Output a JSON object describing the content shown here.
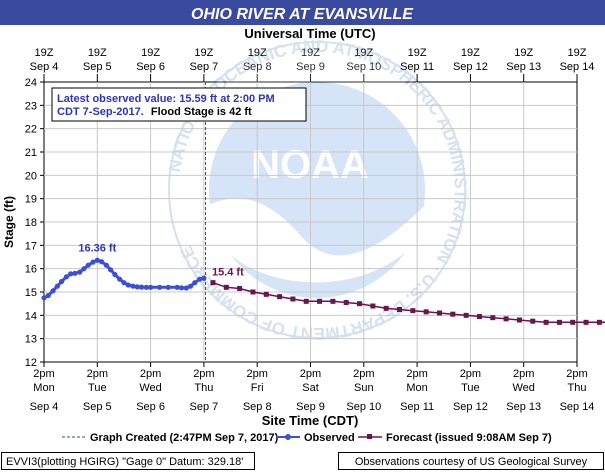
{
  "title": "OHIO RIVER AT EVANSVILLE",
  "top_axis_title": "Universal Time (UTC)",
  "bottom_axis_title": "Site Time (CDT)",
  "y_axis_title": "Stage (ft)",
  "info_box": {
    "line1": "Latest observed value: 15.59 ft at 2:00 PM",
    "line2a": "CDT 7-Sep-2017.",
    "line2b": "Flood Stage is 42 ft"
  },
  "watermark": {
    "logo_text": "NOAA",
    "ring_text": "NATIONAL OCEANIC AND ATMOSPHERIC ADMINISTRATION · U.S. DEPARTMENT OF COMMERCE"
  },
  "legend": {
    "created": "Graph Created (2:47PM Sep 7, 2017)",
    "observed": "Observed",
    "forecast": "Forecast (issued 9:08AM Sep 7)"
  },
  "footer": {
    "left": "EVVI3(plotting HGIRG) \"Gage 0\" Datum: 329.18'",
    "right": "Observations courtesy of US Geological Survey"
  },
  "colors": {
    "title_bg": "#3a4a9e",
    "observed": "#3b4fd8",
    "forecast": "#6b1452",
    "created_line": "#3a4a9e",
    "label_blue": "#2b35c0"
  },
  "chart_data": {
    "type": "line",
    "ylabel": "Stage (ft)",
    "ylim": [
      12,
      24
    ],
    "yticks": [
      12,
      13,
      14,
      15,
      16,
      17,
      18,
      19,
      20,
      21,
      22,
      23,
      24
    ],
    "x_ticks_top": [
      {
        "time": "19Z",
        "date": "Sep 4"
      },
      {
        "time": "19Z",
        "date": "Sep 5"
      },
      {
        "time": "19Z",
        "date": "Sep 6"
      },
      {
        "time": "19Z",
        "date": "Sep 7"
      },
      {
        "time": "19Z",
        "date": "Sep 8"
      },
      {
        "time": "19Z",
        "date": "Sep 9"
      },
      {
        "time": "19Z",
        "date": "Sep 10"
      },
      {
        "time": "19Z",
        "date": "Sep 11"
      },
      {
        "time": "19Z",
        "date": "Sep 12"
      },
      {
        "time": "19Z",
        "date": "Sep 13"
      },
      {
        "time": "19Z",
        "date": "Sep 14"
      }
    ],
    "x_ticks_bottom": [
      {
        "time": "2pm",
        "day": "Mon",
        "date": "Sep 4"
      },
      {
        "time": "2pm",
        "day": "Tue",
        "date": "Sep 5"
      },
      {
        "time": "2pm",
        "day": "Wed",
        "date": "Sep 6"
      },
      {
        "time": "2pm",
        "day": "Thu",
        "date": "Sep 7"
      },
      {
        "time": "2pm",
        "day": "Fri",
        "date": "Sep 8"
      },
      {
        "time": "2pm",
        "day": "Sat",
        "date": "Sep 9"
      },
      {
        "time": "2pm",
        "day": "Sun",
        "date": "Sep 10"
      },
      {
        "time": "2pm",
        "day": "Mon",
        "date": "Sep 11"
      },
      {
        "time": "2pm",
        "day": "Tue",
        "date": "Sep 12"
      },
      {
        "time": "2pm",
        "day": "Wed",
        "date": "Sep 13"
      },
      {
        "time": "2pm",
        "day": "Thu",
        "date": "Sep 14"
      }
    ],
    "graph_created_day": 3.03,
    "series": [
      {
        "name": "Observed",
        "points": [
          [
            0.0,
            14.75
          ],
          [
            0.08,
            14.85
          ],
          [
            0.17,
            15.05
          ],
          [
            0.25,
            15.25
          ],
          [
            0.33,
            15.45
          ],
          [
            0.42,
            15.65
          ],
          [
            0.5,
            15.78
          ],
          [
            0.58,
            15.8
          ],
          [
            0.67,
            15.85
          ],
          [
            0.75,
            16.0
          ],
          [
            0.83,
            16.15
          ],
          [
            0.92,
            16.28
          ],
          [
            1.0,
            16.36
          ],
          [
            1.08,
            16.3
          ],
          [
            1.17,
            16.15
          ],
          [
            1.25,
            15.95
          ],
          [
            1.33,
            15.75
          ],
          [
            1.42,
            15.55
          ],
          [
            1.5,
            15.4
          ],
          [
            1.58,
            15.3
          ],
          [
            1.67,
            15.25
          ],
          [
            1.75,
            15.22
          ],
          [
            1.83,
            15.21
          ],
          [
            1.92,
            15.2
          ],
          [
            2.0,
            15.2
          ],
          [
            2.17,
            15.2
          ],
          [
            2.33,
            15.2
          ],
          [
            2.5,
            15.2
          ],
          [
            2.58,
            15.18
          ],
          [
            2.67,
            15.17
          ],
          [
            2.75,
            15.25
          ],
          [
            2.83,
            15.4
          ],
          [
            2.92,
            15.55
          ],
          [
            3.0,
            15.59
          ]
        ],
        "peak_label": "16.36 ft"
      },
      {
        "name": "Forecast",
        "points": [
          [
            3.17,
            15.4
          ],
          [
            3.42,
            15.2
          ],
          [
            3.67,
            15.15
          ],
          [
            3.92,
            15.0
          ],
          [
            4.17,
            14.9
          ],
          [
            4.42,
            14.8
          ],
          [
            4.67,
            14.7
          ],
          [
            4.92,
            14.6
          ],
          [
            5.17,
            14.6
          ],
          [
            5.42,
            14.6
          ],
          [
            5.67,
            14.55
          ],
          [
            5.92,
            14.5
          ],
          [
            6.17,
            14.4
          ],
          [
            6.42,
            14.3
          ],
          [
            6.67,
            14.25
          ],
          [
            6.92,
            14.2
          ],
          [
            7.17,
            14.15
          ],
          [
            7.42,
            14.1
          ],
          [
            7.67,
            14.05
          ],
          [
            7.92,
            14.0
          ],
          [
            8.17,
            13.95
          ],
          [
            8.42,
            13.9
          ],
          [
            8.67,
            13.85
          ],
          [
            8.92,
            13.8
          ],
          [
            9.17,
            13.75
          ],
          [
            9.42,
            13.7
          ],
          [
            9.67,
            13.7
          ],
          [
            9.92,
            13.7
          ],
          [
            10.17,
            13.7
          ],
          [
            10.42,
            13.7
          ],
          [
            10.67,
            13.7
          ]
        ],
        "first_label": "15.4 ft"
      }
    ]
  }
}
